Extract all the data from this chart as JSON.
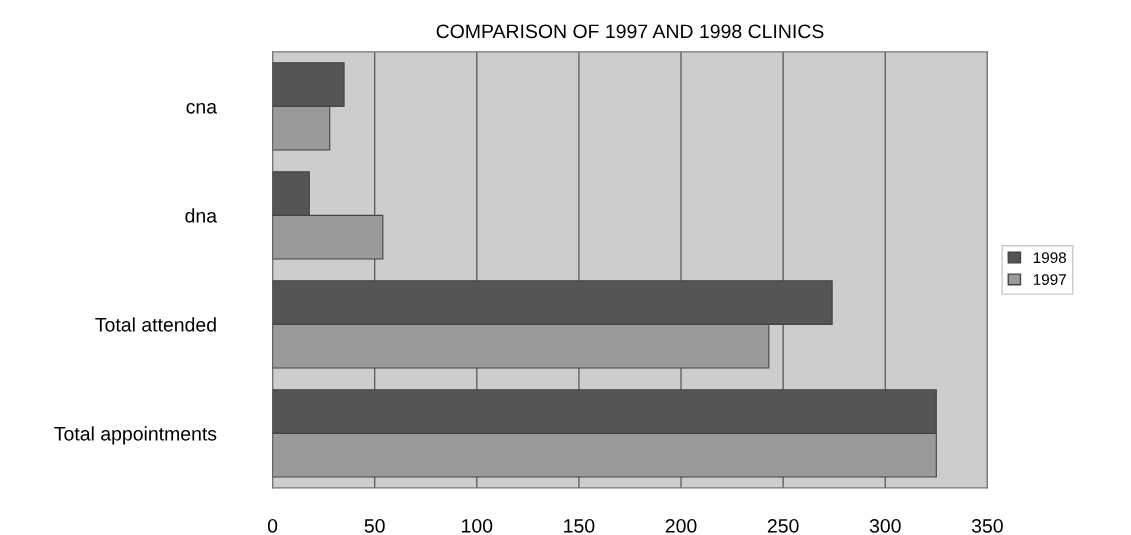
{
  "chart_data": {
    "type": "bar",
    "orientation": "horizontal",
    "title": "COMPARISON OF 1997 AND 1998 CLINICS",
    "categories": [
      "cna",
      "dna",
      "Total attended",
      "Total appointments"
    ],
    "series": [
      {
        "name": "1998",
        "color": "#555555",
        "values": [
          35,
          18,
          274,
          325
        ]
      },
      {
        "name": "1997",
        "color": "#9a9a9a",
        "values": [
          28,
          54,
          243,
          325
        ]
      }
    ],
    "xlim": [
      0,
      350
    ],
    "xticks": [
      0,
      50,
      100,
      150,
      200,
      250,
      300,
      350
    ],
    "grid": "x",
    "legend": "right"
  }
}
